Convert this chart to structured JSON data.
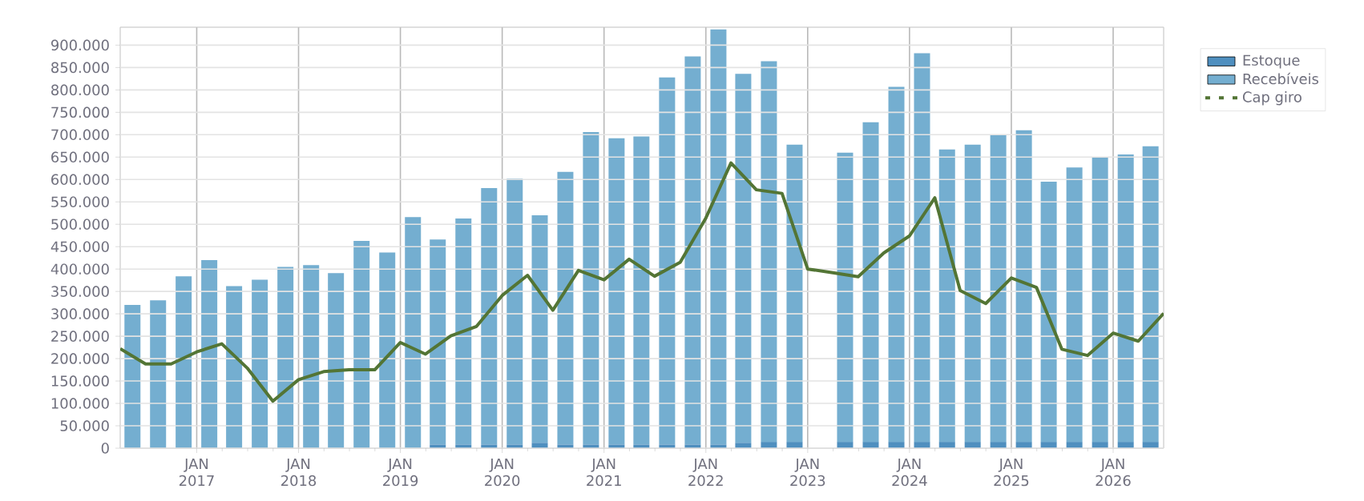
{
  "chart_data": {
    "type": "bar",
    "stacked": true,
    "grid": true,
    "legend": "top right",
    "marker": "none",
    "xlim": [
      "2016-04-01",
      "2026-07-01"
    ],
    "xticks": [
      {
        "value": "2017-01",
        "label": "JAN 2017"
      },
      {
        "value": "2018-01",
        "label": "JAN 2018"
      },
      {
        "value": "2019-01",
        "label": "JAN 2019"
      },
      {
        "value": "2020-01",
        "label": "JAN 2020"
      },
      {
        "value": "2021-01",
        "label": "JAN 2021"
      },
      {
        "value": "2022-01",
        "label": "JAN 2022"
      },
      {
        "value": "2023-01",
        "label": "JAN 2023"
      },
      {
        "value": "2024-01",
        "label": "JAN 2024"
      },
      {
        "value": "2025-01",
        "label": "JAN 2025"
      },
      {
        "value": "2026-01",
        "label": "JAN 2026"
      }
    ],
    "ylim": [
      0,
      940000
    ],
    "yticks": [
      0,
      {
        "value": 50000,
        "label": "50.000"
      },
      {
        "value": 100000,
        "label": "100.000"
      },
      {
        "value": 150000,
        "label": "150.000"
      },
      {
        "value": 200000,
        "label": "200.000"
      },
      {
        "value": 250000,
        "label": "250.000"
      },
      {
        "value": 300000,
        "label": "300.000"
      },
      {
        "value": 350000,
        "label": "350.000"
      },
      {
        "value": 400000,
        "label": "400.000"
      },
      {
        "value": 450000,
        "label": "450.000"
      },
      {
        "value": 500000,
        "label": "500.000"
      },
      {
        "value": 550000,
        "label": "550.000"
      },
      {
        "value": 600000,
        "label": "600.000"
      },
      {
        "value": 650000,
        "label": "650.000"
      },
      {
        "value": 700000,
        "label": "700.000"
      },
      {
        "value": 750000,
        "label": "750.000"
      },
      {
        "value": 800000,
        "label": "800.000"
      },
      {
        "value": 850000,
        "label": "850.000"
      },
      {
        "value": 900000,
        "label": "900.000"
      }
    ],
    "series": [
      {
        "name": "Estoque",
        "color": "#4f8fbf",
        "x": [
          "2016-05-15",
          "2016-08-15",
          "2016-11-15",
          "2017-02-15",
          "2017-05-15",
          "2017-08-15",
          "2017-11-15",
          "2018-02-15",
          "2018-05-15",
          "2018-08-15",
          "2018-11-15",
          "2019-02-15",
          "2019-05-15",
          "2019-08-15",
          "2019-11-15",
          "2020-02-15",
          "2020-05-15",
          "2020-08-15",
          "2020-11-15",
          "2021-02-15",
          "2021-05-15",
          "2021-08-15",
          "2021-11-15",
          "2022-02-15",
          "2022-05-15",
          "2022-08-15",
          "2022-11-15",
          "2023-02-15",
          "2023-05-15",
          "2023-08-15",
          "2023-11-15",
          "2024-02-15",
          "2024-05-15",
          "2024-08-15",
          "2024-11-15",
          "2025-02-15",
          "2025-05-15",
          "2025-08-15",
          "2025-11-15",
          "2026-02-15",
          "2026-05-15"
        ],
        "values": [
          0,
          0,
          0,
          0,
          0,
          0,
          0,
          0,
          0,
          0,
          0,
          0,
          8000,
          8000,
          8000,
          8000,
          12000,
          8000,
          8000,
          8000,
          8000,
          8000,
          8000,
          8000,
          12000,
          14000,
          14000,
          null,
          14000,
          14000,
          14000,
          14000,
          14000,
          14000,
          14000,
          14000,
          14000,
          14000,
          14000,
          14000,
          14000
        ]
      },
      {
        "name": "Recebíveis",
        "color": "#74aed0",
        "x": [
          "2016-05-15",
          "2016-08-15",
          "2016-11-15",
          "2017-02-15",
          "2017-05-15",
          "2017-08-15",
          "2017-11-15",
          "2018-02-15",
          "2018-05-15",
          "2018-08-15",
          "2018-11-15",
          "2019-02-15",
          "2019-05-15",
          "2019-08-15",
          "2019-11-15",
          "2020-02-15",
          "2020-05-15",
          "2020-08-15",
          "2020-11-15",
          "2021-02-15",
          "2021-05-15",
          "2021-08-15",
          "2021-11-15",
          "2022-02-15",
          "2022-05-15",
          "2022-08-15",
          "2022-11-15",
          "2023-02-15",
          "2023-05-15",
          "2023-08-15",
          "2023-11-15",
          "2024-02-15",
          "2024-05-15",
          "2024-08-15",
          "2024-11-15",
          "2025-02-15",
          "2025-05-15",
          "2025-08-15",
          "2025-11-15",
          "2026-02-15",
          "2026-05-15"
        ],
        "values": [
          320000,
          330000,
          384000,
          420000,
          362000,
          376000,
          405000,
          409000,
          391000,
          463000,
          437000,
          516000,
          458000,
          505000,
          573000,
          594000,
          508000,
          609000,
          698000,
          684000,
          688000,
          820000,
          867000,
          927000,
          824000,
          850000,
          664000,
          null,
          646000,
          714000,
          793000,
          868000,
          653000,
          664000,
          685000,
          696000,
          581000,
          613000,
          635000,
          642000,
          660000
        ]
      },
      {
        "name": "Cap giro",
        "type": "line",
        "color": "#537535",
        "line_style": "solid",
        "x": [
          "2016-04-01",
          "2016-07-01",
          "2016-10-01",
          "2017-01-01",
          "2017-04-01",
          "2017-07-01",
          "2017-10-01",
          "2018-01-01",
          "2018-04-01",
          "2018-07-01",
          "2018-10-01",
          "2019-01-01",
          "2019-04-01",
          "2019-07-01",
          "2019-10-01",
          "2020-01-01",
          "2020-04-01",
          "2020-07-01",
          "2020-10-01",
          "2021-01-01",
          "2021-04-01",
          "2021-07-01",
          "2021-10-01",
          "2022-01-01",
          "2022-04-01",
          "2022-07-01",
          "2022-10-01",
          "2023-01-01",
          "2023-04-01",
          "2023-07-01",
          "2023-10-01",
          "2024-01-01",
          "2024-04-01",
          "2024-07-01",
          "2024-10-01",
          "2025-01-01",
          "2025-04-01",
          "2025-07-01",
          "2025-10-01",
          "2026-01-01",
          "2026-04-01",
          "2026-07-01"
        ],
        "values": [
          222000,
          188000,
          188000,
          215000,
          233000,
          179000,
          105000,
          153000,
          171000,
          175000,
          175000,
          236000,
          210000,
          251000,
          272000,
          341000,
          386000,
          308000,
          397000,
          376000,
          422000,
          384000,
          415000,
          514000,
          637000,
          577000,
          569000,
          400000,
          392000,
          383000,
          436000,
          474000,
          559000,
          352000,
          323000,
          380000,
          359000,
          221000,
          207000,
          257000,
          239000,
          301000
        ]
      }
    ]
  }
}
